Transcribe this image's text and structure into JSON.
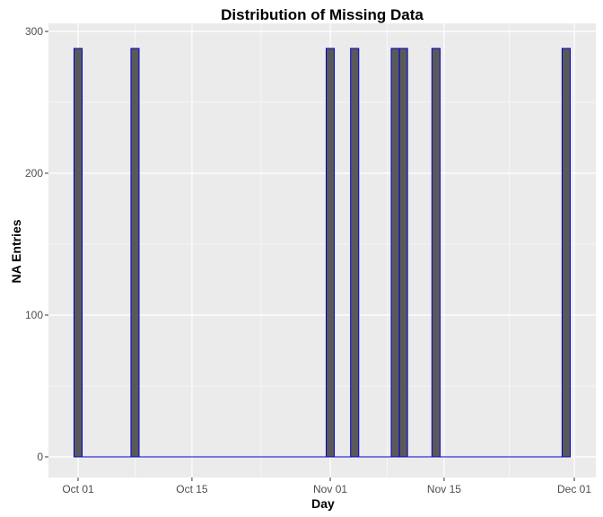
{
  "chart_data": {
    "type": "bar",
    "title": "Distribution of Missing Data",
    "xlabel": "Day",
    "ylabel": "NA Entries",
    "x_axis_type": "date",
    "xlim": [
      "2012-09-29",
      "2012-12-02"
    ],
    "ylim": [
      0,
      300
    ],
    "grid": true,
    "background_color": "#EBEBEB",
    "gridline_color": "#FFFFFF",
    "bar_fill_color": "#595959",
    "bar_outline_color": "#0000CC",
    "x_ticks": [
      {
        "date": "2012-10-01",
        "label": "Oct 01"
      },
      {
        "date": "2012-10-15",
        "label": "Oct 15"
      },
      {
        "date": "2012-11-01",
        "label": "Nov 01"
      },
      {
        "date": "2012-11-15",
        "label": "Nov 15"
      },
      {
        "date": "2012-12-01",
        "label": "Dec 01"
      }
    ],
    "y_ticks": [
      0,
      100,
      200,
      300
    ],
    "x": [
      "2012-10-01",
      "2012-10-08",
      "2012-11-01",
      "2012-11-04",
      "2012-11-09",
      "2012-11-10",
      "2012-11-14",
      "2012-11-30"
    ],
    "values": [
      288,
      288,
      288,
      288,
      288,
      288,
      288,
      288
    ]
  }
}
